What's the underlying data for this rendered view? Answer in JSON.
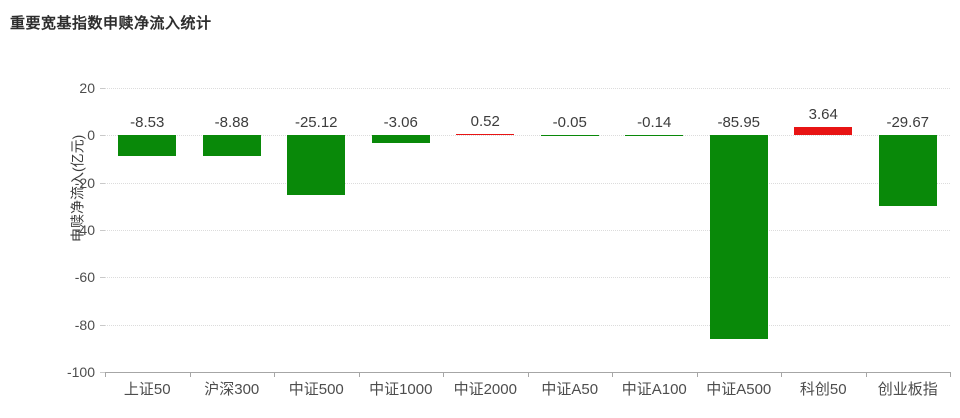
{
  "chart_data": {
    "type": "bar",
    "title": "重要宽基指数申赎净流入统计",
    "ylabel": "申赎净流入(亿元)",
    "xlabel": "",
    "categories": [
      "上证50",
      "沪深300",
      "中证500",
      "中证1000",
      "中证2000",
      "中证A50",
      "中证A100",
      "中证A500",
      "科创50",
      "创业板指"
    ],
    "values": [
      -8.53,
      -8.88,
      -25.12,
      -3.06,
      0.52,
      -0.05,
      -0.14,
      -85.95,
      3.64,
      -29.67
    ],
    "value_labels": [
      "-8.53",
      "-8.88",
      "-25.12",
      "-3.06",
      "0.52",
      "-0.05",
      "-0.14",
      "-85.95",
      "3.64",
      "-29.67"
    ],
    "ylim": [
      -100,
      20
    ],
    "yticks": [
      20,
      0,
      -20,
      -40,
      -60,
      -80,
      -100
    ],
    "grid": "horizontal-dotted",
    "legend": "none",
    "colors": {
      "positive_bar": "#e81414",
      "negative_bar": "#098909",
      "value_label": "#3c3c3c",
      "axis": "#a6a6a6",
      "grid": "#dcdcdc",
      "tick_text": "#4d4d4d",
      "title": "#2d2d2d",
      "background": "#ffffff"
    },
    "bar_width_ratio": 0.69
  }
}
